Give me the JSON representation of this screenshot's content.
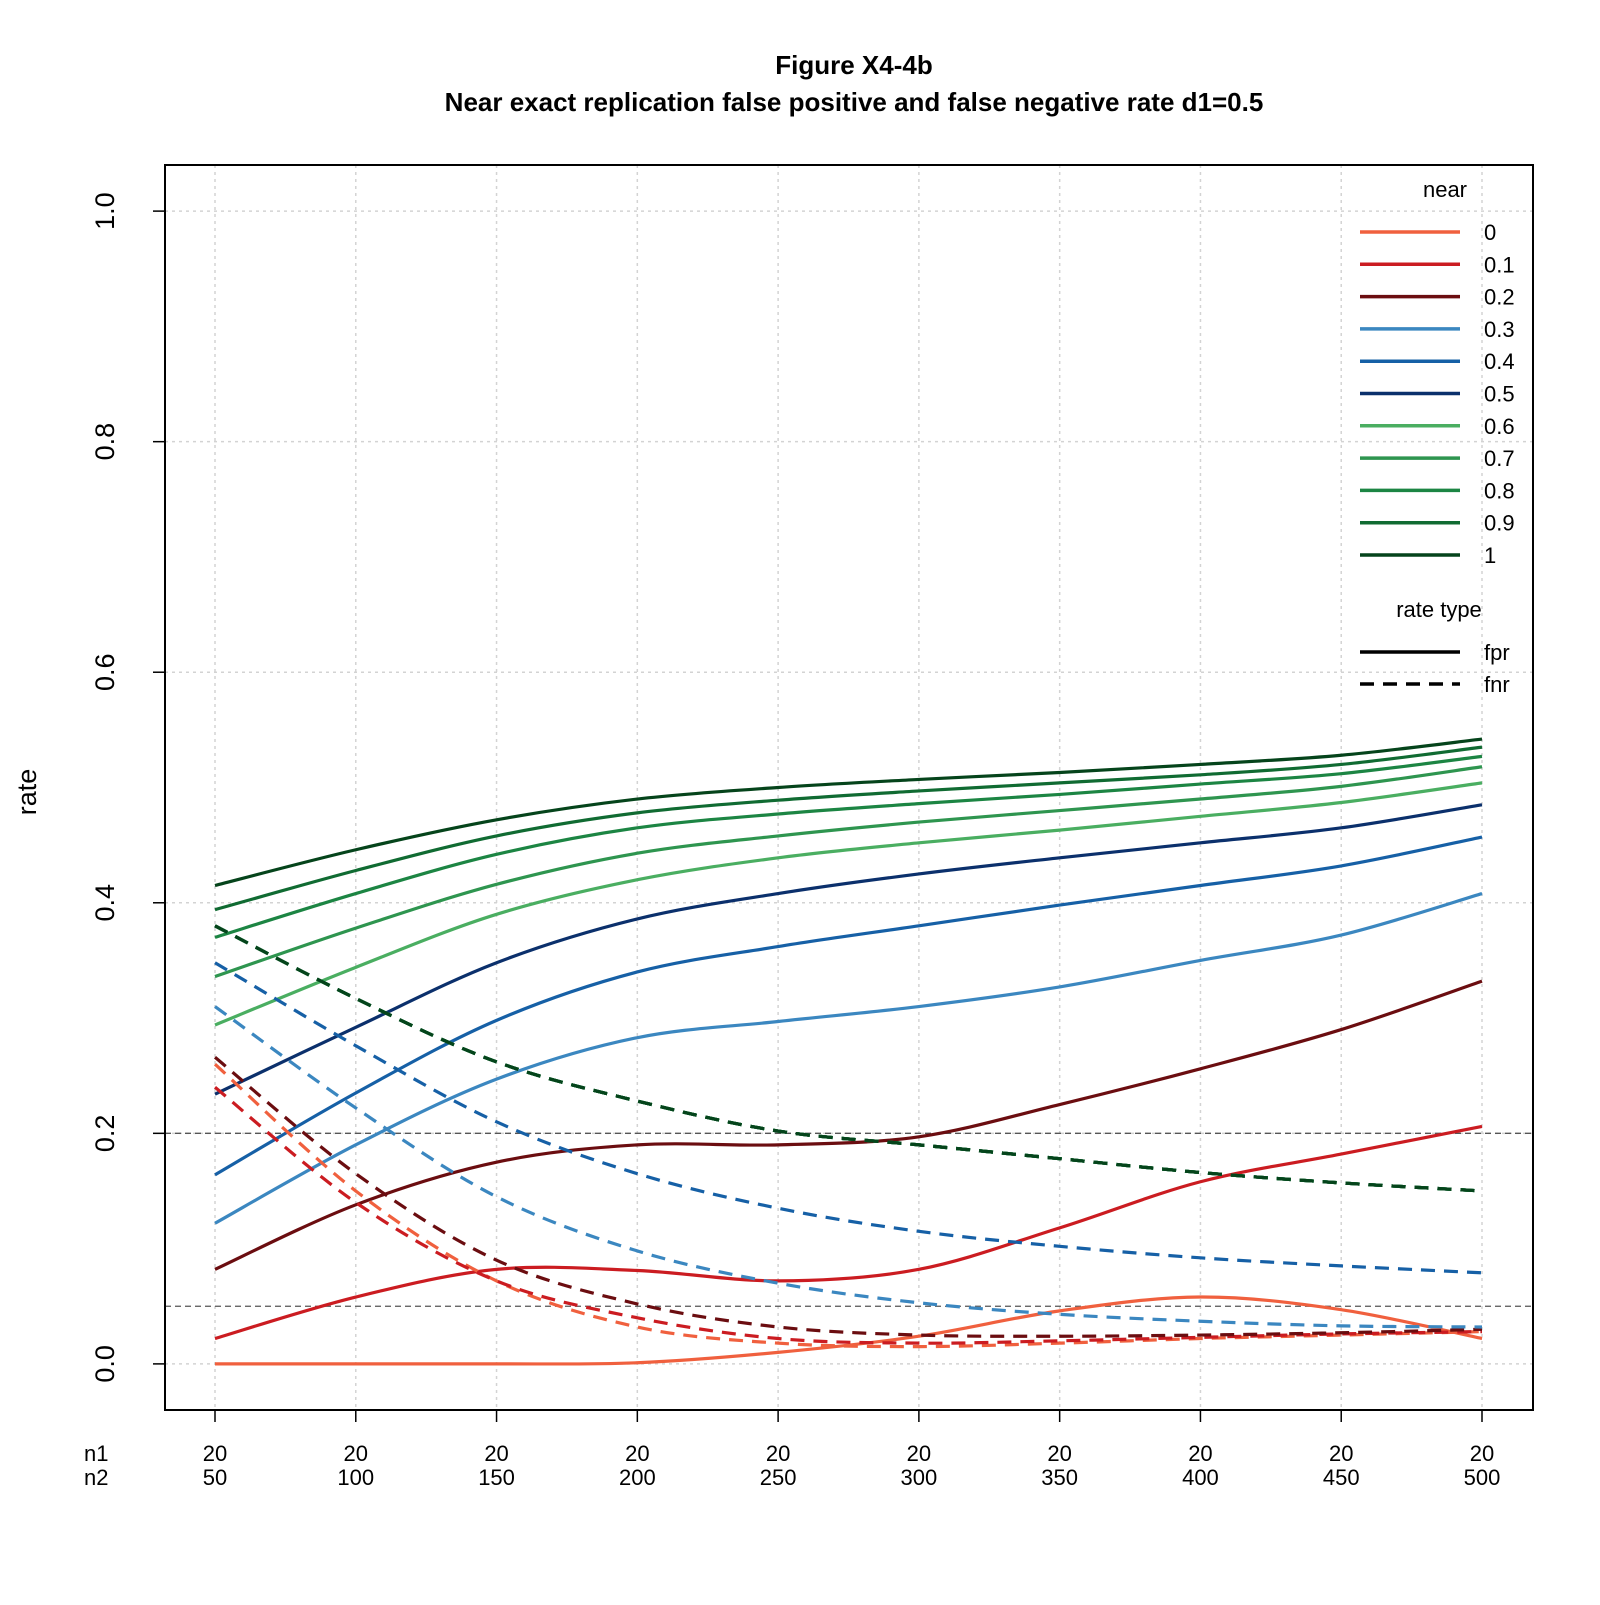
{
  "chart_data": {
    "type": "line",
    "title": "Figure X4-4b",
    "subtitle": "Near exact replication false positive and false negative rate d1=0.5",
    "xlabel": "",
    "ylabel": "rate",
    "xrow_labels": [
      "n1",
      "n2"
    ],
    "n1": [
      20,
      20,
      20,
      20,
      20,
      20,
      20,
      20,
      20,
      20
    ],
    "n2": [
      50,
      100,
      150,
      200,
      250,
      300,
      350,
      400,
      450,
      500
    ],
    "ylim": [
      -0.04,
      1.04
    ],
    "yticks": [
      "0.0",
      "0.2",
      "0.4",
      "0.6",
      "0.8",
      "1.0"
    ],
    "grid": true,
    "reference_lines": [
      0.05,
      0.2
    ],
    "legend_near": {
      "title": "near",
      "position": "top-right",
      "entries": [
        {
          "label": "0",
          "color": "#f0603e"
        },
        {
          "label": "0.1",
          "color": "#cb1c21"
        },
        {
          "label": "0.2",
          "color": "#6b0d10"
        },
        {
          "label": "0.3",
          "color": "#3b87c0"
        },
        {
          "label": "0.4",
          "color": "#1660a6"
        },
        {
          "label": "0.5",
          "color": "#0b306c"
        },
        {
          "label": "0.6",
          "color": "#4aae61"
        },
        {
          "label": "0.7",
          "color": "#2e954f"
        },
        {
          "label": "0.8",
          "color": "#1c8543"
        },
        {
          "label": "0.9",
          "color": "#106b32"
        },
        {
          "label": "1",
          "color": "#05441b"
        }
      ]
    },
    "legend_rate": {
      "title": "rate type",
      "entries": [
        {
          "label": "fpr",
          "dash": "solid"
        },
        {
          "label": "fnr",
          "dash": "dashed"
        }
      ]
    },
    "series": [
      {
        "near": "0",
        "type": "fpr",
        "values": [
          0.0,
          0.0,
          0.0,
          0.001,
          0.01,
          0.024,
          0.046,
          0.058,
          0.047,
          0.022
        ]
      },
      {
        "near": "0.1",
        "type": "fpr",
        "values": [
          0.022,
          0.058,
          0.082,
          0.081,
          0.072,
          0.082,
          0.118,
          0.158,
          0.182,
          0.206
        ]
      },
      {
        "near": "0.2",
        "type": "fpr",
        "values": [
          0.082,
          0.138,
          0.175,
          0.19,
          0.19,
          0.197,
          0.225,
          0.256,
          0.29,
          0.332
        ]
      },
      {
        "near": "0.3",
        "type": "fpr",
        "values": [
          0.122,
          0.19,
          0.247,
          0.283,
          0.297,
          0.31,
          0.327,
          0.35,
          0.372,
          0.408
        ]
      },
      {
        "near": "0.4",
        "type": "fpr",
        "values": [
          0.164,
          0.235,
          0.298,
          0.34,
          0.362,
          0.38,
          0.398,
          0.415,
          0.432,
          0.457
        ]
      },
      {
        "near": "0.5",
        "type": "fpr",
        "values": [
          0.234,
          0.292,
          0.348,
          0.386,
          0.408,
          0.425,
          0.439,
          0.452,
          0.465,
          0.485
        ]
      },
      {
        "near": "0.6",
        "type": "fpr",
        "values": [
          0.294,
          0.344,
          0.39,
          0.42,
          0.439,
          0.452,
          0.463,
          0.475,
          0.487,
          0.504
        ]
      },
      {
        "near": "0.7",
        "type": "fpr",
        "values": [
          0.336,
          0.378,
          0.416,
          0.443,
          0.458,
          0.47,
          0.48,
          0.49,
          0.501,
          0.518
        ]
      },
      {
        "near": "0.8",
        "type": "fpr",
        "values": [
          0.37,
          0.408,
          0.442,
          0.465,
          0.477,
          0.486,
          0.494,
          0.503,
          0.512,
          0.527
        ]
      },
      {
        "near": "0.9",
        "type": "fpr",
        "values": [
          0.394,
          0.428,
          0.458,
          0.478,
          0.489,
          0.497,
          0.504,
          0.511,
          0.52,
          0.535
        ]
      },
      {
        "near": "1",
        "type": "fpr",
        "values": [
          0.415,
          0.446,
          0.472,
          0.49,
          0.5,
          0.507,
          0.513,
          0.52,
          0.528,
          0.542
        ]
      },
      {
        "near": "0",
        "type": "fnr",
        "values": [
          0.26,
          0.15,
          0.072,
          0.032,
          0.018,
          0.015,
          0.018,
          0.022,
          0.025,
          0.028
        ]
      },
      {
        "near": "0.1",
        "type": "fnr",
        "values": [
          0.24,
          0.14,
          0.072,
          0.04,
          0.022,
          0.018,
          0.02,
          0.023,
          0.026,
          0.028
        ]
      },
      {
        "near": "0.2",
        "type": "fnr",
        "values": [
          0.266,
          0.165,
          0.09,
          0.052,
          0.032,
          0.025,
          0.024,
          0.025,
          0.027,
          0.03
        ]
      },
      {
        "near": "0.3",
        "type": "fnr",
        "values": [
          0.31,
          0.222,
          0.145,
          0.098,
          0.07,
          0.053,
          0.043,
          0.037,
          0.033,
          0.032
        ]
      },
      {
        "near": "0.4",
        "type": "fnr",
        "values": [
          0.348,
          0.276,
          0.21,
          0.165,
          0.135,
          0.115,
          0.102,
          0.092,
          0.085,
          0.079
        ]
      },
      {
        "near": "0.5",
        "type": "fnr",
        "values": [
          0.38,
          0.317,
          0.262,
          0.228,
          0.202,
          0.19,
          0.178,
          0.166,
          0.157,
          0.15
        ]
      },
      {
        "near": "0.6",
        "type": "fnr",
        "values": [
          0.38,
          0.317,
          0.262,
          0.228,
          0.202,
          0.19,
          0.178,
          0.166,
          0.157,
          0.15
        ]
      },
      {
        "near": "0.7",
        "type": "fnr",
        "values": [
          0.38,
          0.317,
          0.262,
          0.228,
          0.202,
          0.19,
          0.178,
          0.166,
          0.157,
          0.15
        ]
      },
      {
        "near": "0.8",
        "type": "fnr",
        "values": [
          0.38,
          0.317,
          0.262,
          0.228,
          0.202,
          0.19,
          0.178,
          0.166,
          0.157,
          0.15
        ]
      },
      {
        "near": "0.9",
        "type": "fnr",
        "values": [
          0.38,
          0.317,
          0.262,
          0.228,
          0.202,
          0.19,
          0.178,
          0.166,
          0.157,
          0.15
        ]
      },
      {
        "near": "1",
        "type": "fnr",
        "values": [
          0.38,
          0.317,
          0.262,
          0.228,
          0.202,
          0.19,
          0.178,
          0.166,
          0.157,
          0.15
        ]
      }
    ]
  }
}
